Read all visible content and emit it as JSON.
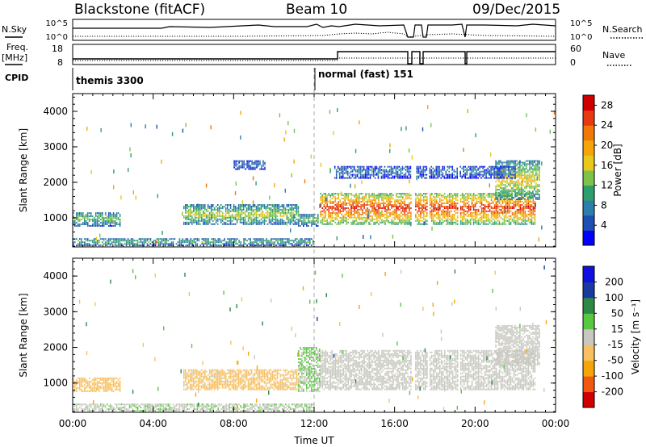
{
  "header": {
    "radar": "Blackstone (fitACF)",
    "beam": "Beam 10",
    "date": "09/Dec/2015"
  },
  "summary_panel": {
    "nsky_label": "N.Sky",
    "nsky_ticks": [
      "10^5",
      "10^0"
    ],
    "nsearch_label": "N.Search",
    "nsearch_ticks": [
      "10^5",
      "10^0"
    ],
    "freq_label": "Freq.",
    "freq_unit": "[MHz]",
    "freq_ticks": [
      "18",
      "8"
    ],
    "nave_label": "Nave",
    "nave_ticks": [
      "60",
      "0"
    ],
    "cpid_label": "CPID",
    "cpid_segments": [
      {
        "label": "themis 3300",
        "start_ut": 0
      },
      {
        "label": "normal (fast) 151",
        "start_ut": 12
      }
    ]
  },
  "chart_data": [
    {
      "type": "heatmap",
      "name": "power",
      "ylabel": "Slant Range [km]",
      "xlabel": "",
      "x_ticks": [
        "00:00",
        "04:00",
        "08:00",
        "12:00",
        "16:00",
        "20:00",
        "00:00"
      ],
      "xlim_ut_hours": [
        0,
        24
      ],
      "y_ticks": [
        1000,
        2000,
        3000,
        4000
      ],
      "ylim_km": [
        180,
        4500
      ],
      "colorbar": {
        "label": "Power [dB]",
        "ticks": [
          "4",
          "8",
          "12",
          "16",
          "20",
          "24",
          "28"
        ],
        "range": [
          0,
          30
        ],
        "colors": [
          "#0000ff",
          "#1e4fb4",
          "#2c7fa8",
          "#2f9e6e",
          "#7ec24a",
          "#e8c81a",
          "#f5a50a",
          "#f07808",
          "#e83a10",
          "#d00000"
        ]
      },
      "regions": [
        {
          "t0": 0.0,
          "t1": 2.4,
          "r0": 750,
          "r1": 1150,
          "value": 12
        },
        {
          "t0": 0.0,
          "t1": 12.0,
          "r0": 200,
          "r1": 420,
          "value": 10
        },
        {
          "t0": 5.5,
          "t1": 11.2,
          "r0": 800,
          "r1": 1350,
          "value": 14
        },
        {
          "t0": 8.0,
          "t1": 9.6,
          "r0": 2350,
          "r1": 2600,
          "value": 6
        },
        {
          "t0": 11.2,
          "t1": 12.2,
          "r0": 750,
          "r1": 1100,
          "value": 12
        },
        {
          "t0": 12.3,
          "t1": 23.0,
          "r0": 800,
          "r1": 1700,
          "value": 24
        },
        {
          "t0": 21.0,
          "t1": 23.2,
          "r0": 1500,
          "r1": 2600,
          "value": 16
        },
        {
          "t0": 13.0,
          "t1": 22.0,
          "r0": 2100,
          "r1": 2450,
          "value": 6
        }
      ],
      "data_gaps_ut": [
        [
          16.8,
          17.0
        ],
        [
          17.6,
          17.7
        ],
        [
          19.1,
          19.2
        ]
      ]
    },
    {
      "type": "heatmap",
      "name": "velocity",
      "ylabel": "Slant Range [km]",
      "xlabel": "Time UT",
      "x_ticks": [
        "00:00",
        "04:00",
        "08:00",
        "12:00",
        "16:00",
        "20:00",
        "00:00"
      ],
      "xlim_ut_hours": [
        0,
        24
      ],
      "y_ticks": [
        1000,
        2000,
        3000,
        4000
      ],
      "ylim_km": [
        180,
        4500
      ],
      "colorbar": {
        "label": "Velocity [m s⁻¹]",
        "ticks": [
          "200",
          "100",
          "50",
          "15",
          "-15",
          "-50",
          "-100",
          "-200"
        ],
        "range": [
          -250,
          250
        ],
        "colors": [
          "#d00000",
          "#f05a10",
          "#f5a50a",
          "#f8c060",
          "#c8c8c0",
          "#58c840",
          "#2c8a46",
          "#1a3aa0",
          "#1010e0"
        ]
      },
      "regions": [
        {
          "t0": 0.0,
          "t1": 2.4,
          "r0": 750,
          "r1": 1150,
          "value": -60
        },
        {
          "t0": 0.0,
          "t1": 12.0,
          "r0": 200,
          "r1": 420,
          "value": 20
        },
        {
          "t0": 5.5,
          "t1": 11.2,
          "r0": 800,
          "r1": 1350,
          "value": -40
        },
        {
          "t0": 11.2,
          "t1": 12.3,
          "r0": 750,
          "r1": 2000,
          "value": 30
        },
        {
          "t0": 12.3,
          "t1": 23.0,
          "r0": 800,
          "r1": 1900,
          "value": 0
        },
        {
          "t0": 21.0,
          "t1": 23.2,
          "r0": 1500,
          "r1": 2600,
          "value": -10
        }
      ],
      "data_gaps_ut": [
        [
          16.8,
          17.0
        ],
        [
          17.6,
          17.7
        ],
        [
          19.1,
          19.2
        ]
      ]
    }
  ]
}
